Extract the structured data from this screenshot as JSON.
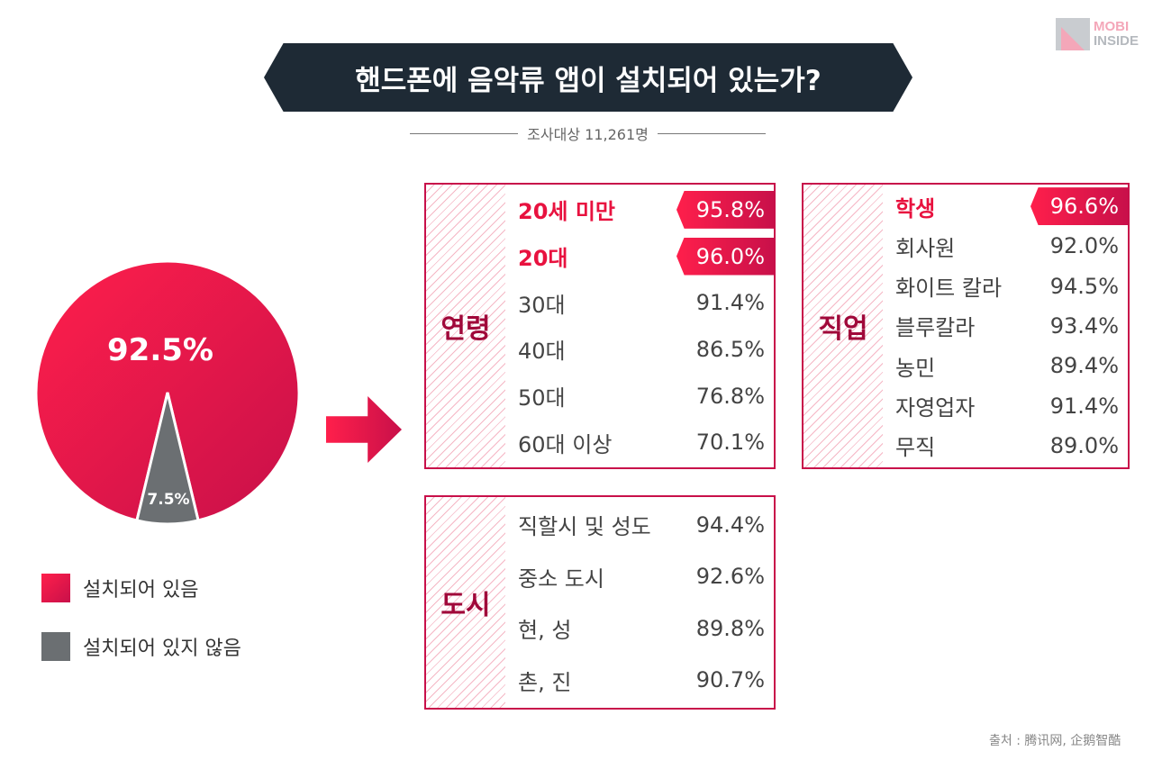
{
  "logo": {
    "line1": "MOBI",
    "line2": "INSIDE"
  },
  "title": "핸드폰에 음악류 앱이 설치되어 있는가?",
  "subtitle": "조사대상 11,261명",
  "colors": {
    "installed": "#e8123f",
    "not_installed": "#6b6f72",
    "dark": "#1e2a35"
  },
  "chart_data": {
    "type": "pie",
    "title": "핸드폰에 음악류 앱이 설치되어 있는가?",
    "labels": [
      "설치되어 있음",
      "설치되어 있지 않음"
    ],
    "values": [
      92.5,
      7.5
    ],
    "data_labels": [
      "92.5%",
      "7.5%"
    ],
    "legend_position": "bottom-left"
  },
  "legend": [
    "설치되어 있음",
    "설치되어 있지 않음"
  ],
  "age": {
    "label": "연령",
    "rows": [
      {
        "label": "20세 미만",
        "value": "95.8%",
        "hl": true
      },
      {
        "label": "20대",
        "value": "96.0%",
        "hl": true
      },
      {
        "label": "30대",
        "value": "91.4%"
      },
      {
        "label": "40대",
        "value": "86.5%"
      },
      {
        "label": "50대",
        "value": "76.8%"
      },
      {
        "label": "60대 이상",
        "value": "70.1%"
      }
    ]
  },
  "job": {
    "label": "직업",
    "rows": [
      {
        "label": "학생",
        "value": "96.6%",
        "hl": true
      },
      {
        "label": "회사원",
        "value": "92.0%"
      },
      {
        "label": "화이트 칼라",
        "value": "94.5%"
      },
      {
        "label": "블루칼라",
        "value": "93.4%"
      },
      {
        "label": "농민",
        "value": "89.4%"
      },
      {
        "label": "자영업자",
        "value": "91.4%"
      },
      {
        "label": "무직",
        "value": "89.0%"
      }
    ]
  },
  "city": {
    "label": "도시",
    "rows": [
      {
        "label": "직할시 및 성도",
        "value": "94.4%"
      },
      {
        "label": "중소 도시",
        "value": "92.6%"
      },
      {
        "label": "현, 성",
        "value": "89.8%"
      },
      {
        "label": "촌, 진",
        "value": "90.7%"
      }
    ]
  },
  "source": "출처 :  腾讯网, 企鹅智酷"
}
